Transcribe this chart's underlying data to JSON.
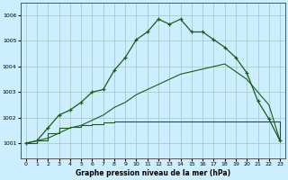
{
  "title": "Graphe pression niveau de la mer (hPa)",
  "bg_color": "#cceeff",
  "grid_color": "#aacccc",
  "line_color": "#1a5c1a",
  "xlim": [
    -0.5,
    23.5
  ],
  "ylim": [
    1000.4,
    1006.5
  ],
  "yticks": [
    1001,
    1002,
    1003,
    1004,
    1005,
    1006
  ],
  "xticks": [
    0,
    1,
    2,
    3,
    4,
    5,
    6,
    7,
    8,
    9,
    10,
    11,
    12,
    13,
    14,
    15,
    16,
    17,
    18,
    19,
    20,
    21,
    22,
    23
  ],
  "line1_x": [
    0,
    1,
    2,
    3,
    4,
    5,
    6,
    7,
    8,
    9,
    10,
    11,
    12,
    13,
    14,
    15,
    16,
    17,
    18,
    19,
    20,
    21,
    22,
    23
  ],
  "line1_y": [
    1001.0,
    1001.1,
    1001.4,
    1001.6,
    1001.65,
    1001.7,
    1001.75,
    1001.8,
    1001.85,
    1001.85,
    1001.85,
    1001.85,
    1001.85,
    1001.85,
    1001.85,
    1001.85,
    1001.85,
    1001.85,
    1001.85,
    1001.85,
    1001.85,
    1001.85,
    1001.85,
    1001.1
  ],
  "line2_x": [
    0,
    1,
    2,
    3,
    4,
    5,
    6,
    7,
    8,
    9,
    10,
    11,
    12,
    13,
    14,
    15,
    16,
    17,
    18,
    19,
    20,
    21,
    22,
    23
  ],
  "line2_y": [
    1001.0,
    1001.1,
    1001.2,
    1001.4,
    1001.6,
    1001.7,
    1001.9,
    1002.1,
    1002.4,
    1002.6,
    1002.9,
    1003.1,
    1003.3,
    1003.5,
    1003.7,
    1003.8,
    1003.9,
    1004.0,
    1004.1,
    1003.8,
    1003.5,
    1003.0,
    1002.5,
    1001.1
  ],
  "line3_x": [
    0,
    1,
    2,
    3,
    4,
    5,
    6,
    7,
    8,
    9,
    10,
    11,
    12,
    13,
    14,
    15,
    16,
    17,
    18,
    19,
    20,
    21,
    22,
    23
  ],
  "line3_y": [
    1001.0,
    1001.1,
    1001.6,
    1002.1,
    1002.3,
    1002.6,
    1003.0,
    1003.1,
    1003.85,
    1004.35,
    1005.05,
    1005.35,
    1005.85,
    1005.65,
    1005.85,
    1005.35,
    1005.35,
    1005.05,
    1004.75,
    1004.35,
    1003.75,
    1002.65,
    1001.95,
    1001.1
  ]
}
